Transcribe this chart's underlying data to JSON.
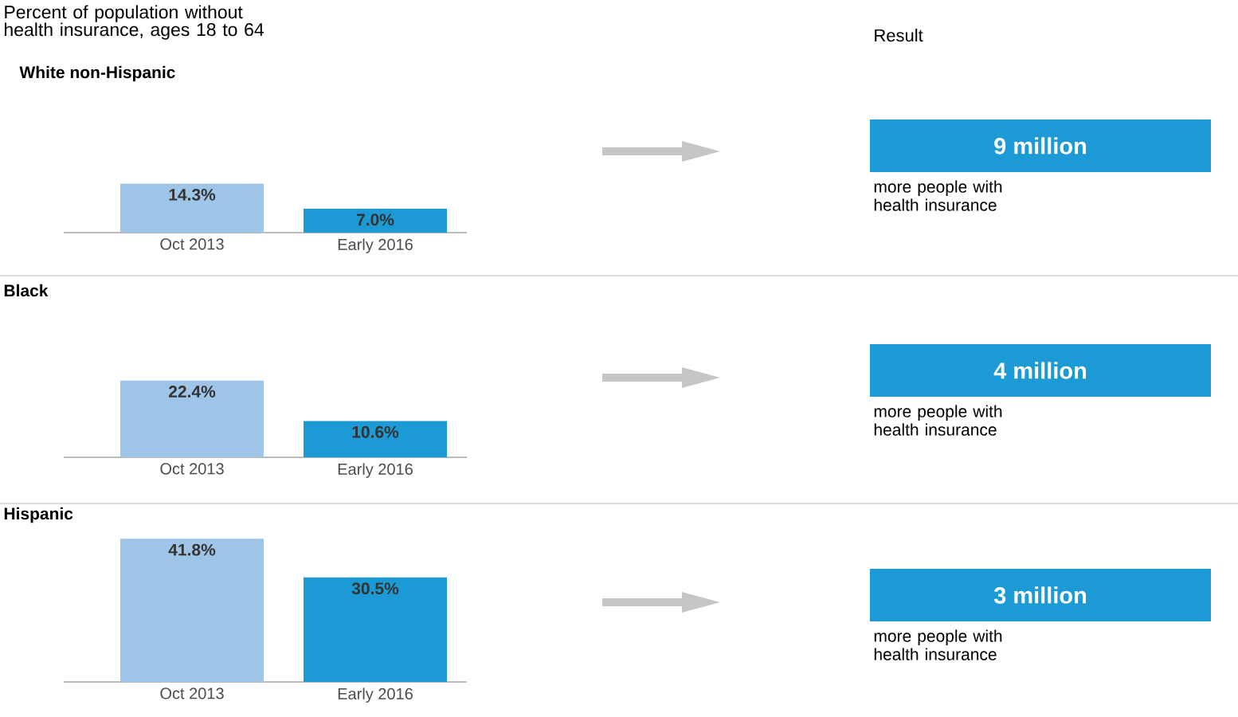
{
  "chart_data": [
    {
      "type": "bar",
      "title": "Percent of population without health insurance, ages 18 to 64",
      "subtitle": "White non-Hispanic",
      "categories": [
        "Oct 2013",
        "Early 2016"
      ],
      "values": [
        14.3,
        7.0
      ],
      "colors": [
        "#9ec5e8",
        "#1b9ad6"
      ],
      "value_labels": [
        "14.3%",
        "7.0%"
      ]
    },
    {
      "type": "bar",
      "title": "Black",
      "categories": [
        "Oct 2013",
        "Early 2016"
      ],
      "values": [
        22.4,
        10.6
      ],
      "colors": [
        "#9ec5e8",
        "#1b9ad6"
      ],
      "value_labels": [
        "22.4%",
        "10.6%"
      ]
    },
    {
      "type": "bar",
      "title": "Hispanic",
      "categories": [
        "Oct 2013",
        "Early 2016"
      ],
      "values": [
        41.8,
        30.5
      ],
      "colors": [
        "#9ec5e8",
        "#1b9ad6"
      ],
      "value_labels": [
        "41.8%",
        "30.5%"
      ]
    },
    {
      "type": "other",
      "title": "Result",
      "annotations": [
        "9 million",
        "more people with health insurance",
        "4 million",
        "more people with health insurance",
        "3 million",
        "more people with health insurance"
      ]
    }
  ]
}
